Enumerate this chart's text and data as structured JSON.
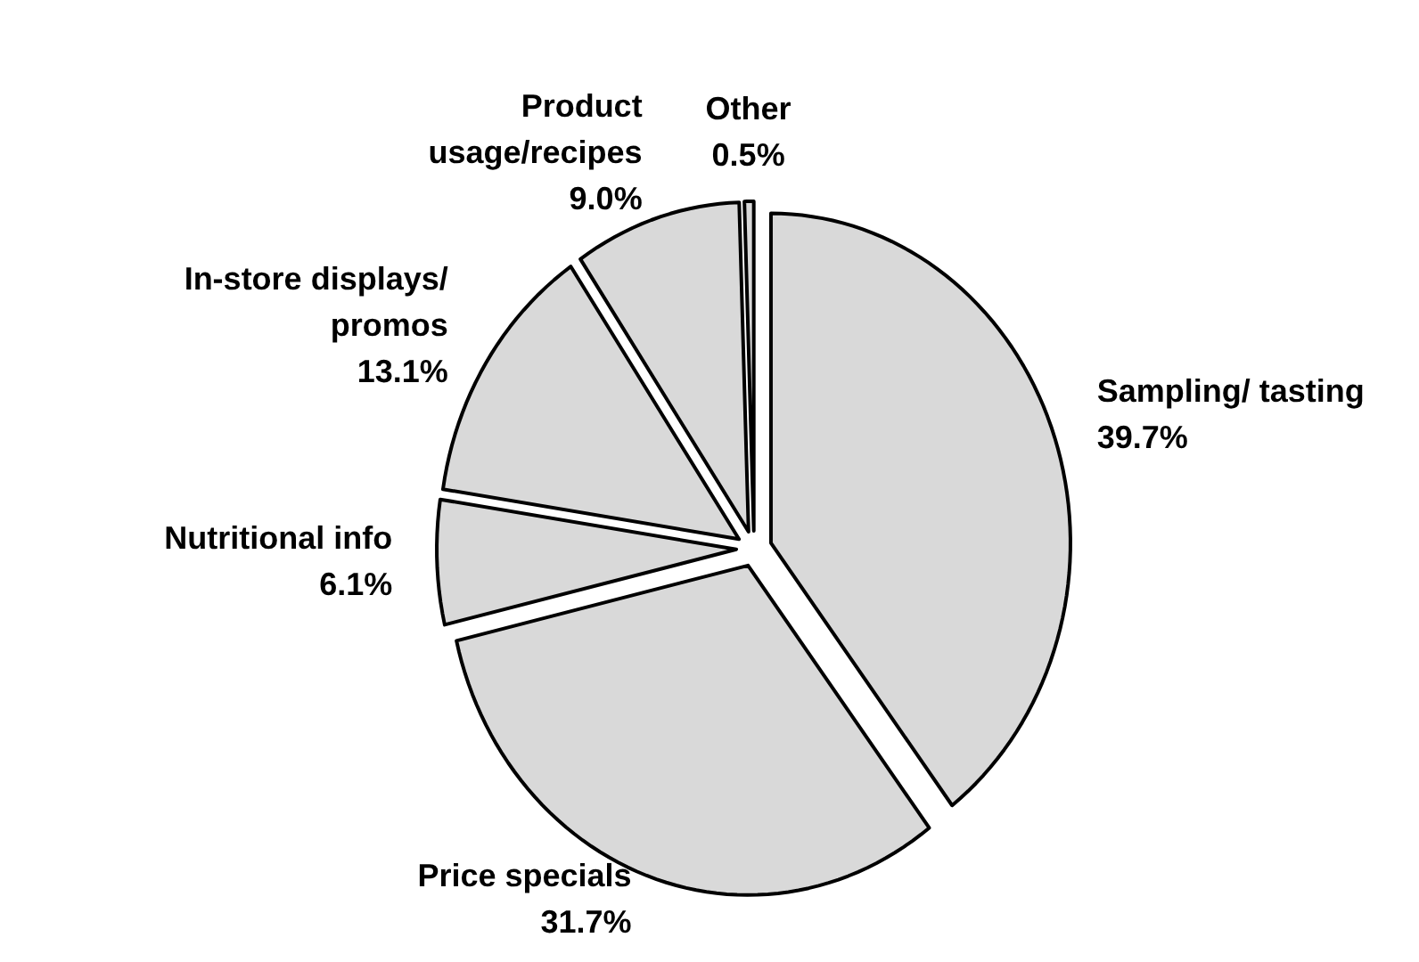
{
  "chart_data": {
    "type": "pie",
    "categories": [
      "Sampling/ tasting",
      "Price specials",
      "Nutritional info",
      "In-store displays/ promos",
      "Product usage/recipes",
      "Other"
    ],
    "values": [
      39.7,
      31.7,
      6.1,
      13.1,
      9.0,
      0.5
    ],
    "value_labels": [
      "39.7%",
      "31.7%",
      "6.1%",
      "13.1%",
      "9.0%",
      "0.5%"
    ],
    "colors": [
      "#d9d9d9",
      "#d9d9d9",
      "#d9d9d9",
      "#d9d9d9",
      "#d9d9d9",
      "#d9d9d9"
    ]
  }
}
